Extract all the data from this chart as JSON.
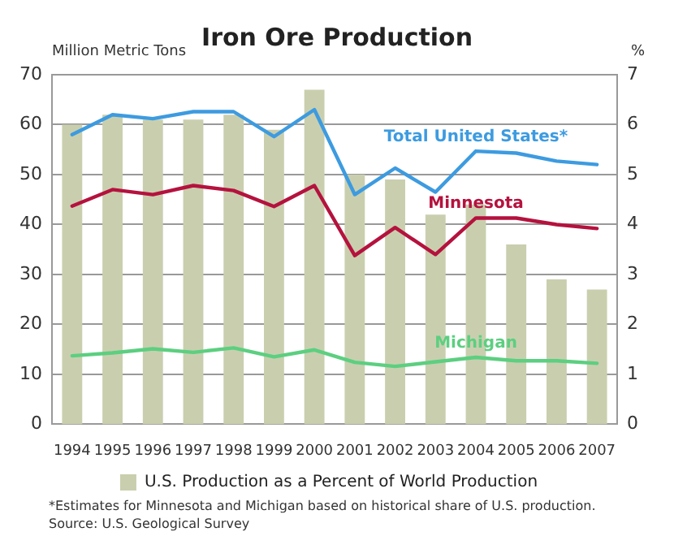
{
  "chart_data": {
    "type": "line",
    "title": "Iron Ore Production",
    "ylabel": "Million Metric Tons",
    "y2label": "%",
    "categories": [
      "1994",
      "1995",
      "1996",
      "1997",
      "1998",
      "1999",
      "2000",
      "2001",
      "2002",
      "2003",
      "2004",
      "2005",
      "2006",
      "2007"
    ],
    "series": [
      {
        "name": "U.S. Production as a Percent of World Production",
        "type": "bar",
        "axis": "y2",
        "color": "#c9cfae",
        "values": [
          6.0,
          6.2,
          6.1,
          6.1,
          6.2,
          5.9,
          6.7,
          5.0,
          4.9,
          4.2,
          4.4,
          3.6,
          2.9,
          2.7
        ]
      },
      {
        "name": "Total United States*",
        "color": "#3d9be0",
        "values": [
          58,
          62,
          61.2,
          62.6,
          62.6,
          57.6,
          63,
          46,
          51.3,
          46.5,
          54.7,
          54.3,
          52.7,
          52
        ]
      },
      {
        "name": "Minnesota",
        "color": "#b5123e",
        "values": [
          43.7,
          47,
          46,
          47.8,
          46.8,
          43.6,
          47.8,
          33.8,
          39.4,
          34,
          41.3,
          41.3,
          40,
          39.2
        ]
      },
      {
        "name": "Michigan",
        "color": "#5ccf80",
        "values": [
          13.7,
          14.3,
          15.1,
          14.4,
          15.3,
          13.5,
          14.9,
          12.4,
          11.6,
          12.5,
          13.4,
          12.7,
          12.7,
          12.2
        ]
      }
    ],
    "ylim": [
      0,
      70
    ],
    "yticks": [
      0,
      10,
      20,
      30,
      40,
      50,
      60,
      70
    ],
    "y2lim": [
      0,
      7
    ],
    "y2ticks": [
      0,
      1,
      2,
      3,
      4,
      5,
      6,
      7
    ],
    "grid": "y",
    "legend": "bottom",
    "marker": "none",
    "line_style": "solid",
    "annotations": [
      "*Estimates for Minnesota and Michigan based on historical share of U.S. production.",
      "Source: U.S. Geological Survey"
    ]
  }
}
